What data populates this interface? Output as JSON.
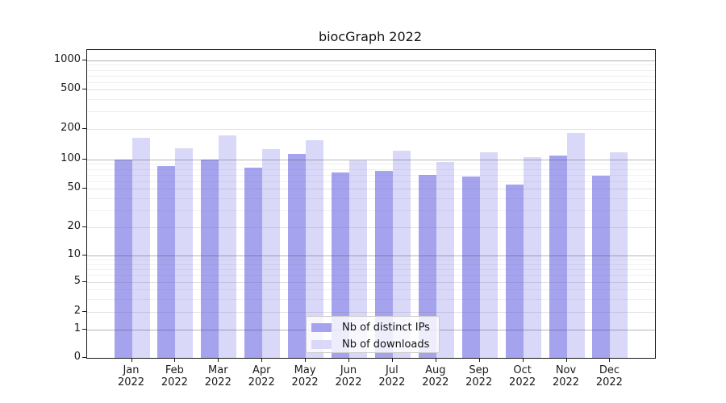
{
  "chart_data": {
    "type": "bar",
    "title": "biocGraph 2022",
    "categories": [
      "Jan",
      "Feb",
      "Mar",
      "Apr",
      "May",
      "Jun",
      "Jul",
      "Aug",
      "Sep",
      "Oct",
      "Nov",
      "Dec"
    ],
    "category_year_line": "2022",
    "series": [
      {
        "name": "Nb of distinct IPs",
        "color": "#a5a3ee",
        "values": [
          100,
          85,
          100,
          83,
          114,
          74,
          76,
          70,
          67,
          55,
          109,
          68
        ]
      },
      {
        "name": "Nb of downloads",
        "color": "#d9d8f8",
        "values": [
          163,
          130,
          174,
          126,
          154,
          98,
          122,
          94,
          118,
          105,
          183,
          117
        ]
      }
    ],
    "y_scale": "symlog",
    "y_ticks": [
      0,
      1,
      2,
      5,
      10,
      20,
      50,
      100,
      200,
      500,
      1000
    ],
    "y_minor_ticks": [
      3,
      4,
      6,
      7,
      8,
      9,
      30,
      40,
      60,
      70,
      80,
      90,
      300,
      400,
      600,
      700,
      800,
      900
    ],
    "ylim": [
      0,
      1250
    ],
    "grid": true,
    "grid_over_bars": true,
    "legend_position": "lower-center",
    "axis_color": "#1a1a1a",
    "background_color": "#ffffff"
  }
}
